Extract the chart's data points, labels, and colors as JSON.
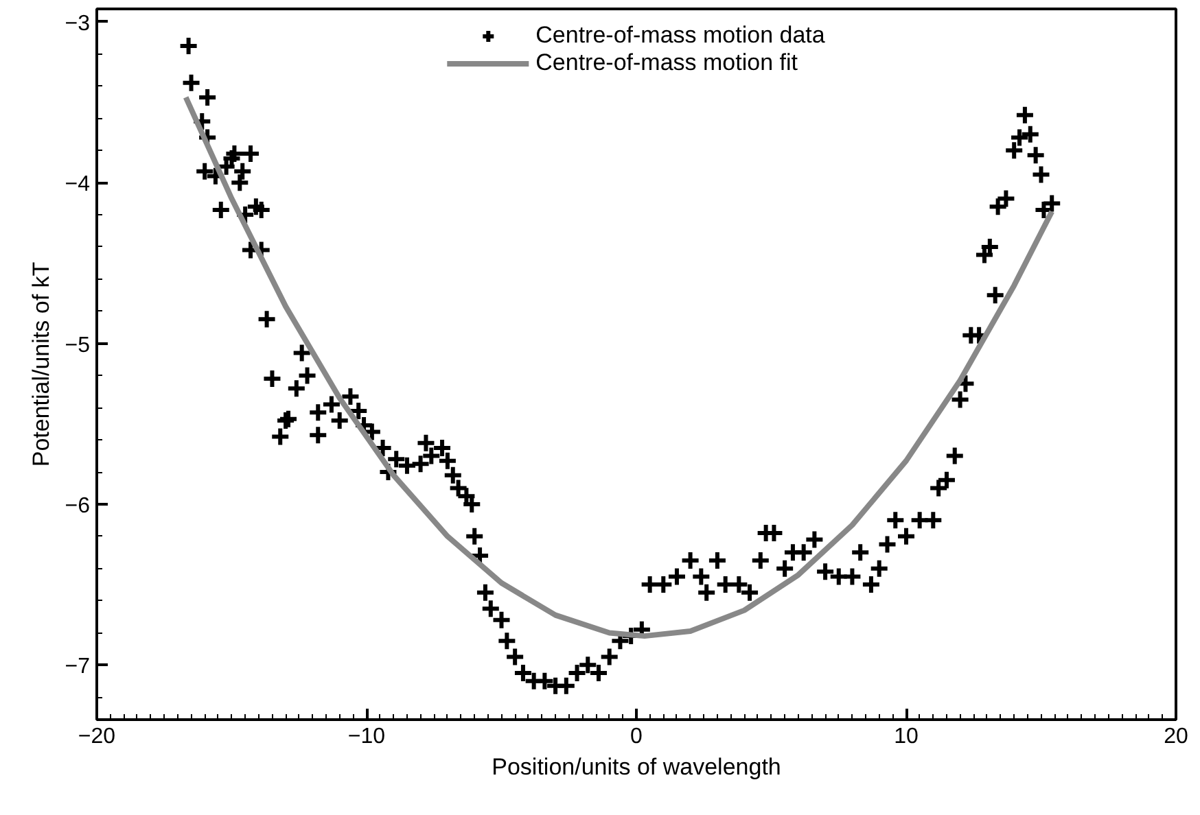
{
  "chart_data": {
    "type": "scatter",
    "xlabel": "Position/units of wavelength",
    "ylabel": "Potential/units of kT",
    "xlim": [
      -20,
      20
    ],
    "xticks": [
      -20,
      -10,
      0,
      10,
      20
    ],
    "ylim": [
      -7.34,
      -2.92
    ],
    "yticks": [
      -7,
      -6,
      -5,
      -4,
      -3
    ],
    "grid": false,
    "legend": "top",
    "series": [
      {
        "name": "Centre-of-mass motion data",
        "color": "#000000",
        "marker": "cross",
        "x": [
          -16.6,
          -16.5,
          -15.9,
          -16.1,
          -15.9,
          -16.0,
          -15.6,
          -15.4,
          -15.2,
          -15.0,
          -14.9,
          -14.7,
          -14.6,
          -14.3,
          -14.5,
          -14.1,
          -14.3,
          -13.9,
          -13.9,
          -13.7,
          -13.5,
          -13.0,
          -13.2,
          -12.9,
          -12.6,
          -12.2,
          -12.4,
          -11.8,
          -11.8,
          -11.3,
          -11.0,
          -10.6,
          -10.3,
          -10.1,
          -9.8,
          -9.4,
          -9.2,
          -8.9,
          -8.5,
          -8.0,
          -7.8,
          -7.6,
          -7.2,
          -7.0,
          -6.8,
          -6.6,
          -6.3,
          -6.1,
          -6.0,
          -5.8,
          -5.6,
          -5.4,
          -5.0,
          -4.8,
          -4.5,
          -4.2,
          -3.8,
          -3.4,
          -3.0,
          -2.6,
          -2.2,
          -1.8,
          -1.4,
          -1.0,
          -0.6,
          -0.2,
          0.2,
          0.5,
          1.0,
          1.5,
          2.0,
          2.4,
          2.6,
          3.0,
          3.3,
          3.8,
          4.2,
          4.6,
          4.8,
          5.1,
          5.5,
          5.8,
          6.2,
          6.6,
          7.0,
          7.5,
          8.0,
          8.3,
          8.7,
          9.0,
          9.3,
          9.6,
          10.0,
          10.5,
          11.0,
          11.2,
          11.5,
          11.8,
          12.0,
          12.2,
          12.4,
          12.7,
          12.9,
          13.1,
          13.3,
          13.4,
          13.7,
          14.0,
          14.2,
          14.4,
          14.6,
          14.8,
          15.0,
          15.1,
          15.4
        ],
        "values": [
          -3.15,
          -3.38,
          -3.47,
          -3.62,
          -3.72,
          -3.93,
          -3.96,
          -4.17,
          -3.9,
          -3.85,
          -3.82,
          -4.0,
          -3.93,
          -3.82,
          -4.2,
          -4.15,
          -4.42,
          -4.42,
          -4.17,
          -4.85,
          -5.22,
          -5.48,
          -5.58,
          -5.47,
          -5.28,
          -5.2,
          -5.06,
          -5.57,
          -5.43,
          -5.38,
          -5.48,
          -5.33,
          -5.42,
          -5.51,
          -5.55,
          -5.65,
          -5.8,
          -5.72,
          -5.76,
          -5.75,
          -5.62,
          -5.7,
          -5.65,
          -5.73,
          -5.82,
          -5.9,
          -5.95,
          -6.0,
          -6.2,
          -6.32,
          -6.55,
          -6.65,
          -6.72,
          -6.85,
          -6.95,
          -7.05,
          -7.1,
          -7.1,
          -7.13,
          -7.13,
          -7.05,
          -7.0,
          -7.05,
          -6.95,
          -6.85,
          -6.82,
          -6.78,
          -6.5,
          -6.5,
          -6.45,
          -6.35,
          -6.45,
          -6.55,
          -6.35,
          -6.5,
          -6.5,
          -6.55,
          -6.35,
          -6.18,
          -6.18,
          -6.4,
          -6.3,
          -6.3,
          -6.22,
          -6.42,
          -6.45,
          -6.45,
          -6.3,
          -6.5,
          -6.4,
          -6.25,
          -6.1,
          -6.2,
          -6.1,
          -6.1,
          -5.9,
          -5.85,
          -5.7,
          -5.35,
          -5.25,
          -4.95,
          -4.95,
          -4.45,
          -4.4,
          -4.7,
          -4.15,
          -4.1,
          -3.8,
          -3.72,
          -3.58,
          -3.7,
          -3.83,
          -3.95,
          -4.17,
          -4.13
        ]
      },
      {
        "name": "Centre-of-mass motion fit",
        "color": "#888888",
        "type": "line",
        "marker": "none",
        "x": [
          -16.7,
          -15,
          -13,
          -11,
          -9,
          -7,
          -5,
          -3,
          -1,
          0.3,
          2,
          4,
          6,
          8,
          10,
          12,
          14,
          15.4
        ],
        "values": [
          -3.47,
          -4.1,
          -4.77,
          -5.34,
          -5.82,
          -6.2,
          -6.49,
          -6.69,
          -6.8,
          -6.82,
          -6.79,
          -6.66,
          -6.44,
          -6.13,
          -5.73,
          -5.23,
          -4.64,
          -4.18
        ]
      }
    ]
  }
}
